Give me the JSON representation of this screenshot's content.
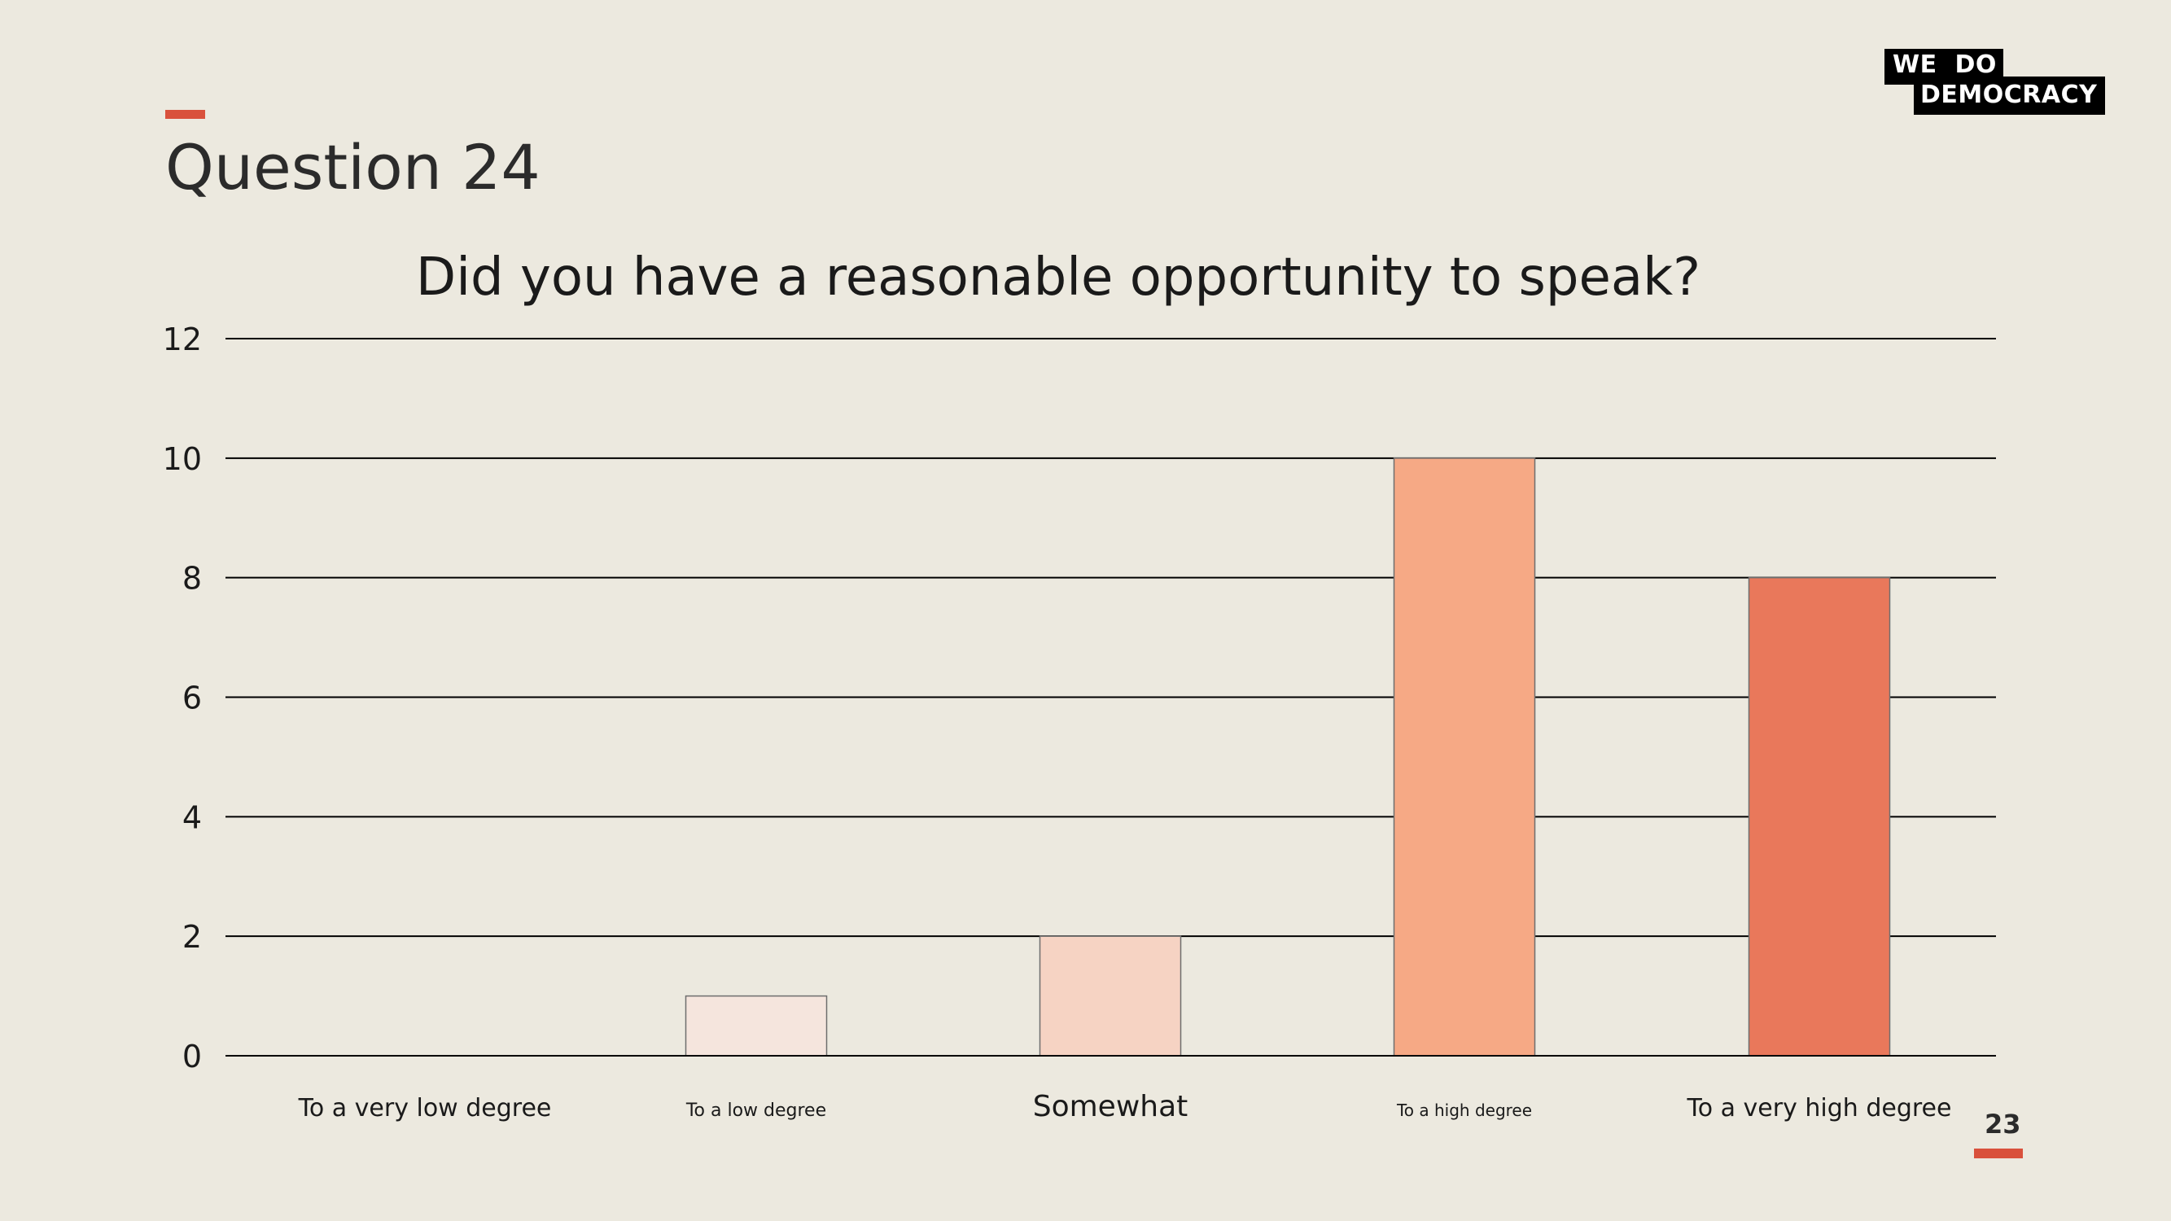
{
  "slide": {
    "heading": "Question 24",
    "page_number": "23",
    "logo": {
      "line1": "WE  DO",
      "line2": "DEMOCRACY"
    },
    "colors": {
      "background": "#ECE9DF",
      "accent": "#D9513C"
    }
  },
  "chart_data": {
    "type": "bar",
    "title": "Did you have a reasonable opportunity to speak?",
    "categories": [
      "To a very low degree",
      "To a low degree",
      "Somewhat",
      "To a high degree",
      "To a very high degree"
    ],
    "values": [
      0,
      1,
      2,
      10,
      8
    ],
    "bar_colors": [
      "#F5E5DD",
      "#F5E5DD",
      "#F6D3C3",
      "#F6A985",
      "#E9785B"
    ],
    "ylim": [
      0,
      12
    ],
    "yticks": [
      "0",
      "2",
      "4",
      "6",
      "8",
      "10",
      "12"
    ],
    "grid": true,
    "xlabel": "",
    "ylabel": ""
  }
}
